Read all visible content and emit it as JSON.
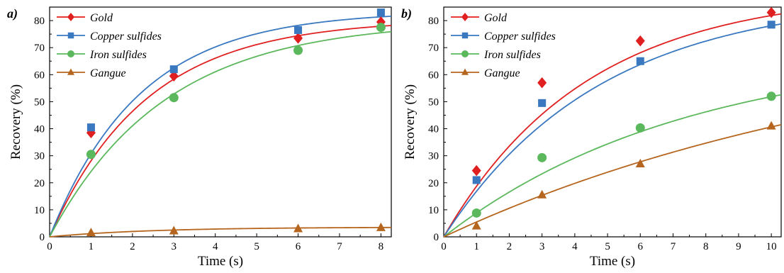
{
  "chart_data": [
    {
      "type": "scatter",
      "panel_label": "a)",
      "xlabel": "Time (s)",
      "ylabel": "Recovery (%)",
      "xlim": [
        0,
        8.25
      ],
      "ylim": [
        0,
        85
      ],
      "xticks": [
        0,
        1,
        2,
        3,
        4,
        5,
        6,
        7,
        8
      ],
      "yticks": [
        0,
        10,
        20,
        30,
        40,
        50,
        60,
        70,
        80
      ],
      "legend_position": "top-left",
      "grid": false,
      "series": [
        {
          "name": "Gold",
          "color": "#e02020",
          "marker": "diamond",
          "points": [
            [
              0,
              0
            ],
            [
              1,
              38.5
            ],
            [
              3,
              59.5
            ],
            [
              6,
              73.5
            ],
            [
              8,
              79.5
            ]
          ],
          "fit": {
            "rmax": 80.5,
            "k": 0.43
          }
        },
        {
          "name": "Copper sulfides",
          "color": "#3a78c0",
          "marker": "square",
          "points": [
            [
              0,
              0
            ],
            [
              1,
              40.5
            ],
            [
              3,
              62
            ],
            [
              6,
              76.5
            ],
            [
              8,
              83
            ]
          ],
          "fit": {
            "rmax": 83.5,
            "k": 0.46
          }
        },
        {
          "name": "Iron sulfides",
          "color": "#5cb85c",
          "marker": "circle",
          "points": [
            [
              0,
              0
            ],
            [
              1,
              30.5
            ],
            [
              3,
              51.5
            ],
            [
              6,
              69
            ],
            [
              8,
              77.5
            ]
          ],
          "fit": {
            "rmax": 80,
            "k": 0.36
          }
        },
        {
          "name": "Gangue",
          "color": "#b5651d",
          "marker": "triangle",
          "points": [
            [
              0,
              0
            ],
            [
              1,
              1.5
            ],
            [
              3,
              2.2
            ],
            [
              6,
              3
            ],
            [
              8,
              3.4
            ]
          ],
          "fit": {
            "rmax": 3.6,
            "k": 0.4
          }
        }
      ]
    },
    {
      "type": "scatter",
      "panel_label": "b)",
      "xlabel": "Time (s)",
      "ylabel": "Recovery (%)",
      "xlim": [
        0,
        10.3
      ],
      "ylim": [
        0,
        85
      ],
      "xticks": [
        0,
        1,
        2,
        3,
        4,
        5,
        6,
        7,
        8,
        9,
        10
      ],
      "yticks": [
        0,
        10,
        20,
        30,
        40,
        50,
        60,
        70,
        80
      ],
      "legend_position": "top-left",
      "grid": false,
      "series": [
        {
          "name": "Gold",
          "color": "#e02020",
          "marker": "diamond",
          "points": [
            [
              0,
              0
            ],
            [
              1,
              24.5
            ],
            [
              3,
              57
            ],
            [
              6,
              72.5
            ],
            [
              10,
              83
            ]
          ],
          "fit": {
            "rmax": 91,
            "k": 0.23
          }
        },
        {
          "name": "Copper sulfides",
          "color": "#3a78c0",
          "marker": "square",
          "points": [
            [
              0,
              0
            ],
            [
              1,
              21
            ],
            [
              3,
              49.5
            ],
            [
              6,
              65
            ],
            [
              10,
              78.5
            ]
          ],
          "fit": {
            "rmax": 89,
            "k": 0.21
          }
        },
        {
          "name": "Iron sulfides",
          "color": "#5cb85c",
          "marker": "circle",
          "points": [
            [
              0,
              0
            ],
            [
              1,
              8.8
            ],
            [
              3,
              29.3
            ],
            [
              6,
              40.3
            ],
            [
              10,
              52
            ]
          ],
          "fit": {
            "rmax": 70,
            "k": 0.135
          }
        },
        {
          "name": "Gangue",
          "color": "#b5651d",
          "marker": "triangle",
          "points": [
            [
              0,
              0
            ],
            [
              1,
              4
            ],
            [
              3,
              15.5
            ],
            [
              6,
              27
            ],
            [
              10,
              41
            ]
          ],
          "fit": {
            "rmax": 80,
            "k": 0.071
          }
        }
      ]
    }
  ]
}
